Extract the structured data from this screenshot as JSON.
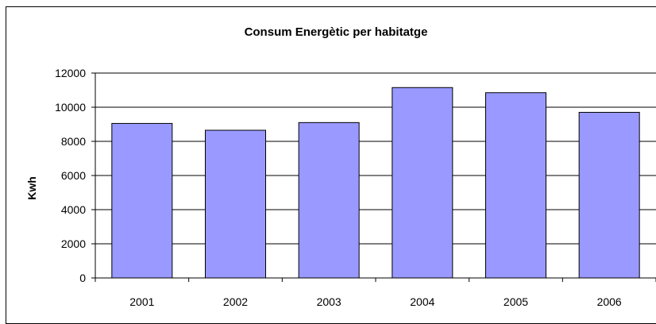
{
  "chart_data": {
    "type": "bar",
    "title": "Consum Energètic per habitatge",
    "xlabel": "",
    "ylabel": "Kwh",
    "categories": [
      "2001",
      "2002",
      "2003",
      "2004",
      "2005",
      "2006"
    ],
    "values": [
      9050,
      8650,
      9100,
      11150,
      10850,
      9700
    ],
    "ylim": [
      0,
      12000
    ],
    "yticks": [
      0,
      2000,
      4000,
      6000,
      8000,
      10000,
      12000
    ],
    "ytick_labels": [
      "0",
      "2000",
      "4000",
      "6000",
      "8000",
      "10000",
      "12000"
    ],
    "grid": true,
    "legend": "none",
    "bar_color": "#9999ff",
    "bar_edge_color": "#000000"
  }
}
